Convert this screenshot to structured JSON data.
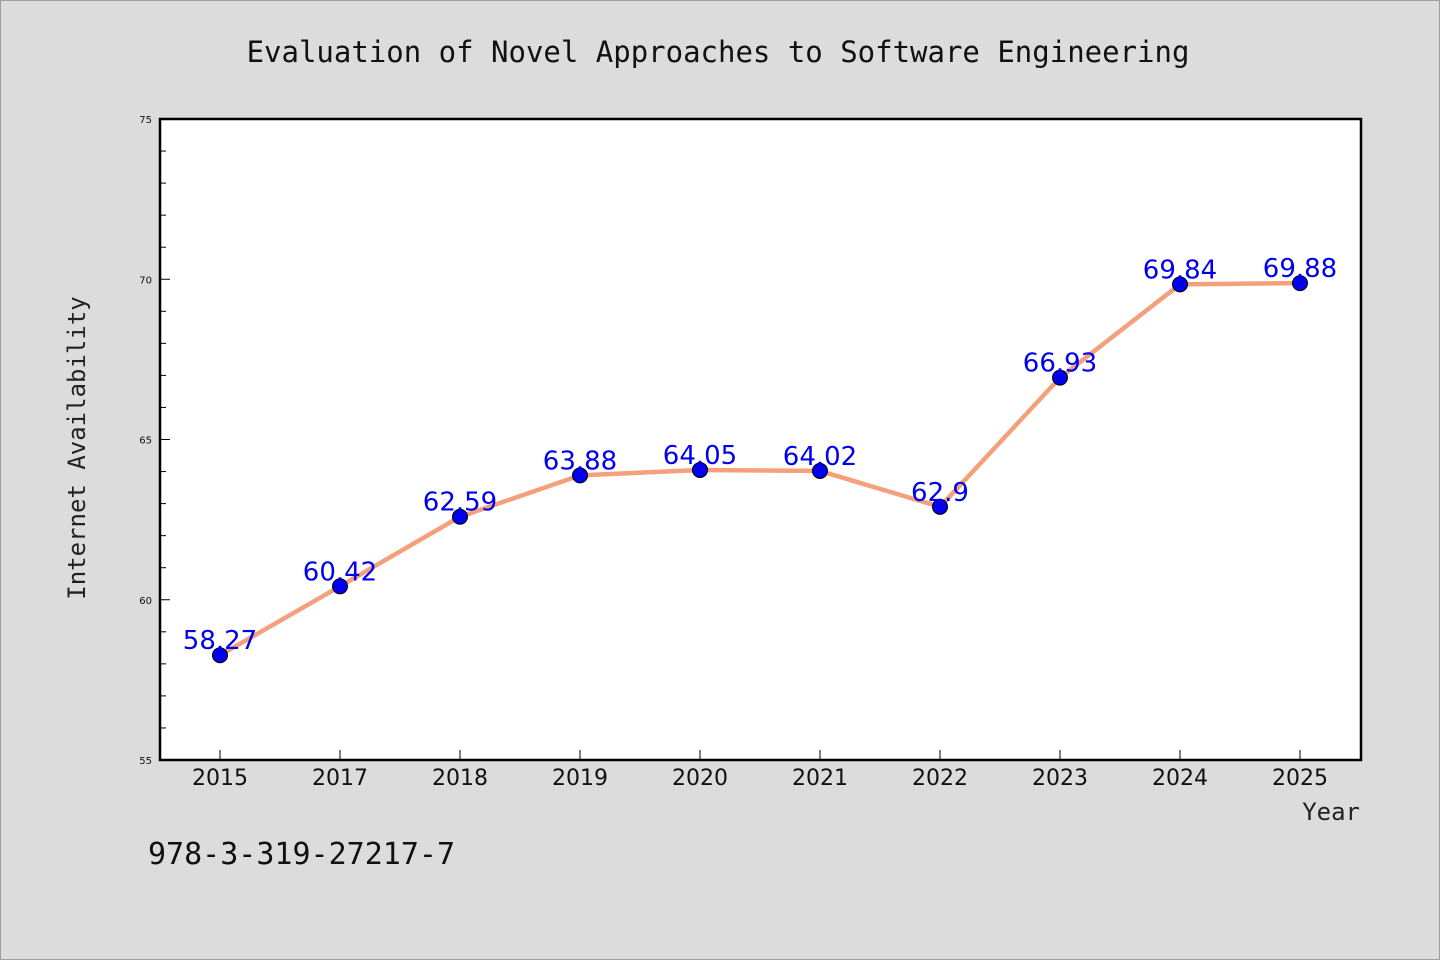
{
  "chart_data": {
    "type": "line",
    "title": "Evaluation of Novel Approaches to Software Engineering",
    "xlabel": "Year",
    "ylabel": "Internet Availability",
    "categories": [
      "2015",
      "2017",
      "2018",
      "2019",
      "2020",
      "2021",
      "2022",
      "2023",
      "2024",
      "2025"
    ],
    "series": [
      {
        "values": [
          58.27,
          60.42,
          62.59,
          63.88,
          64.05,
          64.02,
          62.9,
          66.93,
          69.84,
          69.88
        ]
      }
    ],
    "data_labels": [
      "58.27",
      "60.42",
      "62.59",
      "63.88",
      "64.05",
      "64.02",
      "62.9",
      "66.93",
      "69.84",
      "69.88"
    ],
    "ylim": [
      55,
      75
    ],
    "yticks": [
      55,
      60,
      65,
      70,
      75
    ],
    "grid": false,
    "line_color": "#f4a07c",
    "marker_color": "#0000ee",
    "label_color": "#0000ee"
  },
  "footnote": "978-3-319-27217-7"
}
